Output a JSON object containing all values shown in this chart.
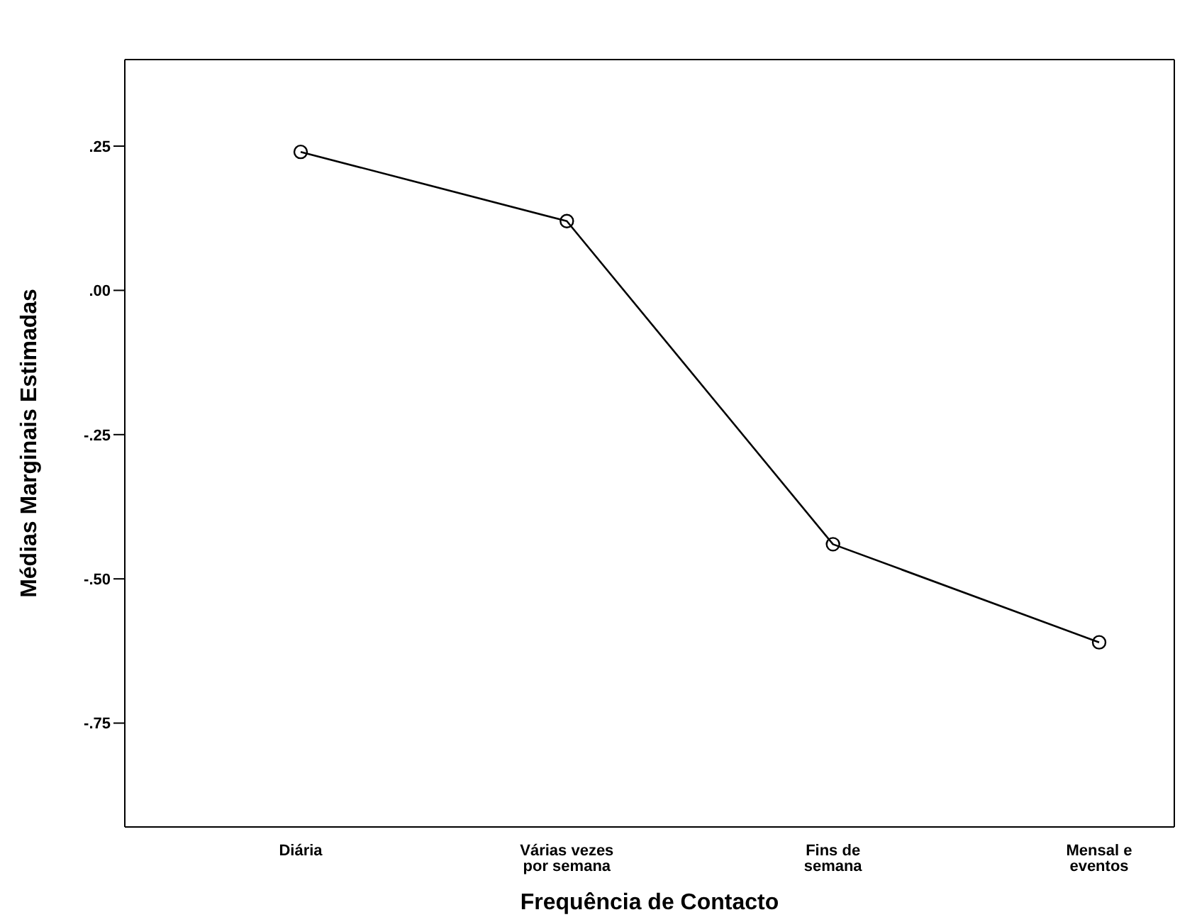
{
  "chart_data": {
    "type": "line",
    "xlabel": "Frequência de Contacto",
    "ylabel": "Médias Marginais Estimadas",
    "categories": [
      "Diária",
      "Várias vezes por semana",
      "Fins de semana",
      "Mensal e eventos"
    ],
    "series": [
      {
        "color": "#000000",
        "values": [
          0.24,
          0.12,
          -0.44,
          -0.61
        ]
      }
    ],
    "ylim": [
      -0.93,
      0.4
    ],
    "yticks": [
      {
        "value": -0.75,
        "label": "-.75"
      },
      {
        "value": -0.5,
        "label": "-.50"
      },
      {
        "value": -0.25,
        "label": "-.25"
      },
      {
        "value": 0,
        "label": ".00"
      },
      {
        "value": 0.25,
        "label": ".25"
      }
    ],
    "marker": "circle",
    "grid": false,
    "legend": false
  }
}
